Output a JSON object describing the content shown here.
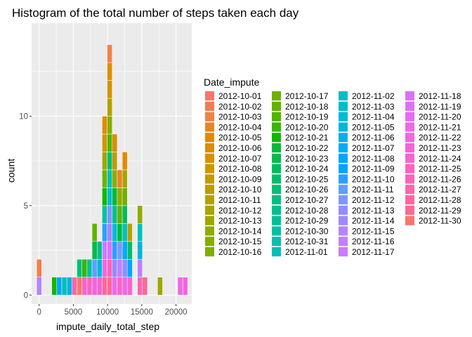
{
  "chart_data": {
    "type": "bar",
    "stacked": true,
    "title": "Histogram of the total number of steps taken each day",
    "xlabel": "impute_daily_total_step",
    "ylabel": "count",
    "xlim": [
      -1100,
      22300
    ],
    "ylim": [
      -0.5,
      15.2
    ],
    "x_ticks": [
      0,
      5000,
      10000,
      15000,
      20000
    ],
    "x_tick_labels": [
      "0",
      "5000",
      "10000",
      "15000",
      "20000"
    ],
    "y_ticks": [
      0,
      5,
      10
    ],
    "y_tick_labels": [
      "0",
      "5",
      "10"
    ],
    "binwidth": 736.25,
    "panel_background": "#ebebeb",
    "grid": true,
    "legend": {
      "title": "Date_impute",
      "position": "right",
      "columns": 4,
      "entries": [
        "2012-10-01",
        "2012-10-02",
        "2012-10-03",
        "2012-10-04",
        "2012-10-05",
        "2012-10-06",
        "2012-10-07",
        "2012-10-08",
        "2012-10-09",
        "2012-10-10",
        "2012-10-11",
        "2012-10-12",
        "2012-10-13",
        "2012-10-14",
        "2012-10-15",
        "2012-10-16",
        "2012-10-17",
        "2012-10-18",
        "2012-10-19",
        "2012-10-20",
        "2012-10-21",
        "2012-10-22",
        "2012-10-23",
        "2012-10-24",
        "2012-10-25",
        "2012-10-26",
        "2012-10-27",
        "2012-10-28",
        "2012-10-29",
        "2012-10-30",
        "2012-10-31",
        "2012-11-01",
        "2012-11-02",
        "2012-11-03",
        "2012-11-04",
        "2012-11-05",
        "2012-11-06",
        "2012-11-07",
        "2012-11-08",
        "2012-11-09",
        "2012-11-10",
        "2012-11-11",
        "2012-11-12",
        "2012-11-13",
        "2012-11-14",
        "2012-11-15",
        "2012-11-16",
        "2012-11-17",
        "2012-11-18",
        "2012-11-19",
        "2012-11-20",
        "2012-11-21",
        "2012-11-22",
        "2012-11-23",
        "2012-11-24",
        "2012-11-25",
        "2012-11-26",
        "2012-11-27",
        "2012-11-28",
        "2012-11-29",
        "2012-11-30"
      ],
      "colors": [
        "#F8766D",
        "#F47D4D",
        "#EF8248",
        "#E88526",
        "#E38900",
        "#DB8E00",
        "#D49200",
        "#CE9600",
        "#C49A00",
        "#BB9D00",
        "#B2A100",
        "#A8A400",
        "#9EA700",
        "#92AA00",
        "#86AC00",
        "#7CAE00",
        "#6FB100",
        "#61B200",
        "#51B500",
        "#39B600",
        "#10B800",
        "#00BA38",
        "#00BB4E",
        "#00BC5D",
        "#00BD6B",
        "#00BE77",
        "#00BF84",
        "#00C08D",
        "#00C097",
        "#00C1A3",
        "#00C0AF",
        "#00C0B8",
        "#00BFC4",
        "#00BCCA",
        "#00BAD3",
        "#00B5DC",
        "#00B0E6",
        "#00ABFB",
        "#00A6FF",
        "#00A5FF",
        "#28A0FF",
        "#619CFF",
        "#7D97FF",
        "#908EFF",
        "#A188FF",
        "#B385FF",
        "#C17FFF",
        "#CE79FF",
        "#D873FC",
        "#E16FF5",
        "#E76BF3",
        "#ED69E8",
        "#F265E0",
        "#F663D6",
        "#FA64CD",
        "#FC63C2",
        "#FD64B8",
        "#FF65AA",
        "#FF679D",
        "#FB6A92",
        "#F8766D"
      ]
    },
    "bins": [
      {
        "x": 0,
        "dates": [
          "2012-11-15",
          "2012-10-02"
        ]
      },
      {
        "x": 2208.75,
        "dates": [
          "2012-10-21"
        ]
      },
      {
        "x": 2945,
        "dates": [
          "2012-11-08"
        ]
      },
      {
        "x": 3681.25,
        "dates": [
          "2012-11-01"
        ]
      },
      {
        "x": 4417.5,
        "dates": [
          "2012-11-06"
        ]
      },
      {
        "x": 5153.75,
        "dates": [
          "2012-11-27"
        ]
      },
      {
        "x": 5890,
        "dates": [
          "2012-11-30",
          "2012-10-26"
        ]
      },
      {
        "x": 6626.25,
        "dates": [
          "2012-11-24",
          "2012-10-20"
        ]
      },
      {
        "x": 7362.5,
        "dates": [
          "2012-11-25",
          "2012-10-29"
        ]
      },
      {
        "x": 8098.75,
        "dates": [
          "2012-11-22",
          "2012-11-11",
          "2012-10-23",
          "2012-10-18"
        ]
      },
      {
        "x": 8835,
        "dates": [
          "2012-11-23",
          "2012-11-05",
          "2012-10-27"
        ]
      },
      {
        "x": 9571.25,
        "dates": [
          "2012-11-29",
          "2012-11-21",
          "2012-11-17",
          "2012-11-10",
          "2012-10-30",
          "2012-10-21",
          "2012-10-17",
          "2012-10-13",
          "2012-10-08",
          "2012-10-06"
        ]
      },
      {
        "x": 10307.5,
        "dates": [
          "2012-11-28",
          "2012-11-26",
          "2012-11-18",
          "2012-11-14",
          "2012-11-12",
          "2012-11-03",
          "2012-10-31",
          "2012-10-25",
          "2012-10-19",
          "2012-10-15",
          "2012-10-11",
          "2012-10-07",
          "2012-10-06",
          "2012-10-03"
        ]
      },
      {
        "x": 11043.75,
        "dates": [
          "2012-11-20",
          "2012-11-13",
          "2012-11-10",
          "2012-11-04",
          "2012-10-28",
          "2012-10-22",
          "2012-10-14",
          "2012-10-09",
          "2012-10-06"
        ]
      },
      {
        "x": 11780,
        "dates": [
          "2012-11-25",
          "2012-11-16",
          "2012-11-12",
          "2012-10-22",
          "2012-10-18",
          "2012-10-14",
          "2012-10-04"
        ]
      },
      {
        "x": 12516.25,
        "dates": [
          "2012-11-21",
          "2012-11-13",
          "2012-11-07",
          "2012-11-02",
          "2012-10-24",
          "2012-10-17",
          "2012-10-12",
          "2012-10-05"
        ]
      },
      {
        "x": 13252.5,
        "dates": [
          "2012-11-24",
          "2012-11-09",
          "2012-10-25",
          "2012-10-11"
        ]
      },
      {
        "x": 14725,
        "dates": [
          "2012-11-26",
          "2012-11-16",
          "2012-11-05",
          "2012-11-01",
          "2012-10-14"
        ]
      },
      {
        "x": 15461.25,
        "dates": [
          "2012-11-29"
        ]
      },
      {
        "x": 17670,
        "dates": [
          "2012-10-13"
        ]
      },
      {
        "x": 20615,
        "dates": [
          "2012-11-21"
        ]
      },
      {
        "x": 21351.25,
        "dates": [
          "2012-11-22"
        ]
      }
    ]
  }
}
